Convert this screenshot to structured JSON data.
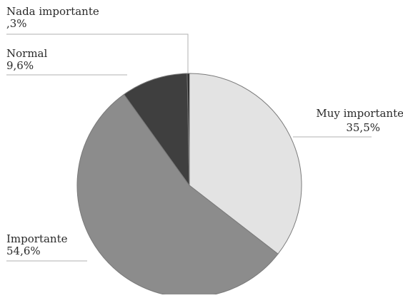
{
  "chart_data": {
    "type": "pie",
    "title": "",
    "start_angle_deg": 0,
    "direction": "clockwise",
    "slices": [
      {
        "label": "Muy importante",
        "value_text": "35,5%",
        "value": 35.5,
        "color": "#e3e3e3"
      },
      {
        "label": "Importante",
        "value_text": "54,6%",
        "value": 54.6,
        "color": "#8c8c8c"
      },
      {
        "label": "Normal",
        "value_text": "9,6%",
        "value": 9.6,
        "color": "#3f3f3f"
      },
      {
        "label": "Nada importante",
        "value_text": ",3%",
        "value": 0.3,
        "color": "#1f1f1f"
      }
    ],
    "slice_border_color": "#7a7a7a",
    "leader_line_color": "#b0b0b0"
  }
}
